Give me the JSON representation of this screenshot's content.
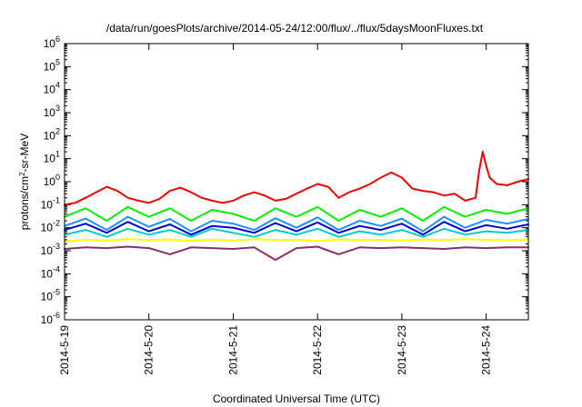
{
  "chart_data": {
    "type": "line",
    "title": "/data/run/goesPlots/archive/2014-05-24/12:00/flux/../flux/5daysMoonFluxes.txt",
    "xlabel": "Coordinated Universal Time (UTC)",
    "ylabel": {
      "prefix": "protons/cm",
      "sup": "2",
      "suffix": "-sr-MeV"
    },
    "xlim": [
      "2014-05-19T00:00",
      "2014-05-24T12:00"
    ],
    "ylim": [
      1e-06,
      1000000.0
    ],
    "yscale": "log",
    "grid": false,
    "legend": "none",
    "x_ticks": [
      {
        "value": "2014-05-19T00:00",
        "label": "2014-5-19"
      },
      {
        "value": "2014-05-20T00:00",
        "label": "2014-5-20"
      },
      {
        "value": "2014-05-21T00:00",
        "label": "2014-5-21"
      },
      {
        "value": "2014-05-22T00:00",
        "label": "2014-5-22"
      },
      {
        "value": "2014-05-23T00:00",
        "label": "2014-5-23"
      },
      {
        "value": "2014-05-24T00:00",
        "label": "2014-5-24"
      }
    ],
    "y_ticks": [
      {
        "value": 1000000.0,
        "base": "10",
        "exp": "6"
      },
      {
        "value": 100000.0,
        "base": "10",
        "exp": "5"
      },
      {
        "value": 10000.0,
        "base": "10",
        "exp": "4"
      },
      {
        "value": 1000.0,
        "base": "10",
        "exp": "3"
      },
      {
        "value": 100.0,
        "base": "10",
        "exp": "2"
      },
      {
        "value": 10.0,
        "base": "10",
        "exp": "1"
      },
      {
        "value": 1.0,
        "base": "10",
        "exp": "0"
      },
      {
        "value": 0.1,
        "base": "10",
        "exp": "-1"
      },
      {
        "value": 0.01,
        "base": "10",
        "exp": "-2"
      },
      {
        "value": 0.001,
        "base": "10",
        "exp": "-3"
      },
      {
        "value": 0.0001,
        "base": "10",
        "exp": "-4"
      },
      {
        "value": 1e-05,
        "base": "10",
        "exp": "-5"
      },
      {
        "value": 1e-06,
        "base": "10",
        "exp": "-6"
      }
    ],
    "series": [
      {
        "color": "#8b2c6e",
        "x": [
          "2014-05-19T00:00",
          "2014-05-19T06:00",
          "2014-05-19T12:00",
          "2014-05-19T18:00",
          "2014-05-20T00:00",
          "2014-05-20T06:00",
          "2014-05-20T12:00",
          "2014-05-20T18:00",
          "2014-05-21T00:00",
          "2014-05-21T06:00",
          "2014-05-21T12:00",
          "2014-05-21T18:00",
          "2014-05-22T00:00",
          "2014-05-22T06:00",
          "2014-05-22T12:00",
          "2014-05-22T18:00",
          "2014-05-23T00:00",
          "2014-05-23T06:00",
          "2014-05-23T12:00",
          "2014-05-23T18:00",
          "2014-05-24T00:00",
          "2014-05-24T06:00",
          "2014-05-24T12:00"
        ],
        "values": [
          0.0012,
          0.0014,
          0.0013,
          0.0015,
          0.0013,
          0.0007,
          0.0014,
          0.0013,
          0.0012,
          0.0014,
          0.0004,
          0.0013,
          0.0015,
          0.0007,
          0.0014,
          0.0013,
          0.0014,
          0.0013,
          0.0012,
          0.0014,
          0.0013,
          0.0014,
          0.0014
        ]
      },
      {
        "color": "#ffff00",
        "x": [
          "2014-05-19T00:00",
          "2014-05-19T06:00",
          "2014-05-19T12:00",
          "2014-05-19T18:00",
          "2014-05-20T00:00",
          "2014-05-20T06:00",
          "2014-05-20T12:00",
          "2014-05-20T18:00",
          "2014-05-21T00:00",
          "2014-05-21T06:00",
          "2014-05-21T12:00",
          "2014-05-21T18:00",
          "2014-05-22T00:00",
          "2014-05-22T06:00",
          "2014-05-22T12:00",
          "2014-05-22T18:00",
          "2014-05-23T00:00",
          "2014-05-23T06:00",
          "2014-05-23T12:00",
          "2014-05-23T18:00",
          "2014-05-24T00:00",
          "2014-05-24T06:00",
          "2014-05-24T12:00"
        ],
        "values": [
          0.0025,
          0.003,
          0.0028,
          0.0032,
          0.0029,
          0.0031,
          0.0027,
          0.003,
          0.0028,
          0.0032,
          0.0029,
          0.003,
          0.0027,
          0.0031,
          0.0029,
          0.003,
          0.0028,
          0.0031,
          0.0029,
          0.0032,
          0.003,
          0.0029,
          0.0031
        ]
      },
      {
        "color": "#00cccc",
        "x": [
          "2014-05-19T00:00",
          "2014-05-19T06:00",
          "2014-05-19T12:00",
          "2014-05-19T18:00",
          "2014-05-20T00:00",
          "2014-05-20T06:00",
          "2014-05-20T12:00",
          "2014-05-20T18:00",
          "2014-05-21T00:00",
          "2014-05-21T06:00",
          "2014-05-21T12:00",
          "2014-05-21T18:00",
          "2014-05-22T00:00",
          "2014-05-22T06:00",
          "2014-05-22T12:00",
          "2014-05-22T18:00",
          "2014-05-23T00:00",
          "2014-05-23T06:00",
          "2014-05-23T12:00",
          "2014-05-23T18:00",
          "2014-05-24T00:00",
          "2014-05-24T06:00",
          "2014-05-24T12:00"
        ],
        "values": [
          0.005,
          0.008,
          0.004,
          0.009,
          0.005,
          0.008,
          0.004,
          0.009,
          0.006,
          0.004,
          0.008,
          0.005,
          0.009,
          0.004,
          0.007,
          0.005,
          0.008,
          0.004,
          0.009,
          0.005,
          0.007,
          0.006,
          0.008
        ]
      },
      {
        "color": "#00ee00",
        "x": [
          "2014-05-19T00:00",
          "2014-05-19T06:00",
          "2014-05-19T12:00",
          "2014-05-19T18:00",
          "2014-05-20T00:00",
          "2014-05-20T06:00",
          "2014-05-20T12:00",
          "2014-05-20T18:00",
          "2014-05-21T00:00",
          "2014-05-21T06:00",
          "2014-05-21T12:00",
          "2014-05-21T18:00",
          "2014-05-22T00:00",
          "2014-05-22T06:00",
          "2014-05-22T12:00",
          "2014-05-22T18:00",
          "2014-05-23T00:00",
          "2014-05-23T06:00",
          "2014-05-23T12:00",
          "2014-05-23T18:00",
          "2014-05-24T00:00",
          "2014-05-24T06:00",
          "2014-05-24T12:00"
        ],
        "values": [
          0.03,
          0.07,
          0.02,
          0.08,
          0.03,
          0.07,
          0.02,
          0.06,
          0.04,
          0.02,
          0.07,
          0.03,
          0.08,
          0.02,
          0.06,
          0.03,
          0.07,
          0.02,
          0.08,
          0.03,
          0.06,
          0.04,
          0.07
        ]
      },
      {
        "color": "#1e90ff",
        "x": [
          "2014-05-19T00:00",
          "2014-05-19T06:00",
          "2014-05-19T12:00",
          "2014-05-19T18:00",
          "2014-05-20T00:00",
          "2014-05-20T06:00",
          "2014-05-20T12:00",
          "2014-05-20T18:00",
          "2014-05-21T00:00",
          "2014-05-21T06:00",
          "2014-05-21T12:00",
          "2014-05-21T18:00",
          "2014-05-22T00:00",
          "2014-05-22T06:00",
          "2014-05-22T12:00",
          "2014-05-22T18:00",
          "2014-05-23T00:00",
          "2014-05-23T06:00",
          "2014-05-23T12:00",
          "2014-05-23T18:00",
          "2014-05-24T00:00",
          "2014-05-24T06:00",
          "2014-05-24T12:00"
        ],
        "values": [
          0.012,
          0.025,
          0.008,
          0.03,
          0.011,
          0.024,
          0.007,
          0.02,
          0.015,
          0.008,
          0.026,
          0.01,
          0.028,
          0.008,
          0.02,
          0.012,
          0.025,
          0.007,
          0.03,
          0.01,
          0.022,
          0.015,
          0.024
        ]
      },
      {
        "color": "#0000cd",
        "x": [
          "2014-05-19T00:00",
          "2014-05-19T06:00",
          "2014-05-19T12:00",
          "2014-05-19T18:00",
          "2014-05-20T00:00",
          "2014-05-20T06:00",
          "2014-05-20T12:00",
          "2014-05-20T18:00",
          "2014-05-21T00:00",
          "2014-05-21T06:00",
          "2014-05-21T12:00",
          "2014-05-21T18:00",
          "2014-05-22T00:00",
          "2014-05-22T06:00",
          "2014-05-22T12:00",
          "2014-05-22T18:00",
          "2014-05-23T00:00",
          "2014-05-23T06:00",
          "2014-05-23T12:00",
          "2014-05-23T18:00",
          "2014-05-24T00:00",
          "2014-05-24T06:00",
          "2014-05-24T12:00"
        ],
        "values": [
          0.008,
          0.015,
          0.006,
          0.018,
          0.007,
          0.014,
          0.005,
          0.012,
          0.01,
          0.006,
          0.016,
          0.007,
          0.017,
          0.006,
          0.012,
          0.008,
          0.015,
          0.005,
          0.018,
          0.007,
          0.013,
          0.009,
          0.014
        ]
      },
      {
        "color": "#ee0000",
        "x": [
          "2014-05-19T00:00",
          "2014-05-19T03:00",
          "2014-05-19T06:00",
          "2014-05-19T09:00",
          "2014-05-19T12:00",
          "2014-05-19T15:00",
          "2014-05-19T18:00",
          "2014-05-19T21:00",
          "2014-05-20T00:00",
          "2014-05-20T03:00",
          "2014-05-20T06:00",
          "2014-05-20T09:00",
          "2014-05-20T12:00",
          "2014-05-20T15:00",
          "2014-05-20T18:00",
          "2014-05-20T21:00",
          "2014-05-21T00:00",
          "2014-05-21T03:00",
          "2014-05-21T06:00",
          "2014-05-21T09:00",
          "2014-05-21T12:00",
          "2014-05-21T15:00",
          "2014-05-21T18:00",
          "2014-05-21T21:00",
          "2014-05-22T00:00",
          "2014-05-22T03:00",
          "2014-05-22T06:00",
          "2014-05-22T09:00",
          "2014-05-22T12:00",
          "2014-05-22T15:00",
          "2014-05-22T18:00",
          "2014-05-22T21:00",
          "2014-05-23T00:00",
          "2014-05-23T03:00",
          "2014-05-23T06:00",
          "2014-05-23T09:00",
          "2014-05-23T12:00",
          "2014-05-23T15:00",
          "2014-05-23T18:00",
          "2014-05-23T21:00",
          "2014-05-23T22:00",
          "2014-05-23T23:00",
          "2014-05-24T00:00",
          "2014-05-24T01:00",
          "2014-05-24T03:00",
          "2014-05-24T06:00",
          "2014-05-24T09:00",
          "2014-05-24T12:00"
        ],
        "values": [
          0.1,
          0.12,
          0.2,
          0.35,
          0.6,
          0.4,
          0.2,
          0.15,
          0.12,
          0.18,
          0.4,
          0.55,
          0.35,
          0.2,
          0.15,
          0.12,
          0.15,
          0.25,
          0.35,
          0.25,
          0.15,
          0.18,
          0.3,
          0.5,
          0.8,
          0.6,
          0.2,
          0.35,
          0.5,
          0.8,
          1.5,
          2.5,
          1.5,
          0.5,
          0.4,
          0.35,
          0.25,
          0.3,
          0.15,
          0.2,
          3,
          20,
          5,
          1.5,
          0.8,
          0.7,
          1,
          1.3
        ]
      }
    ]
  }
}
